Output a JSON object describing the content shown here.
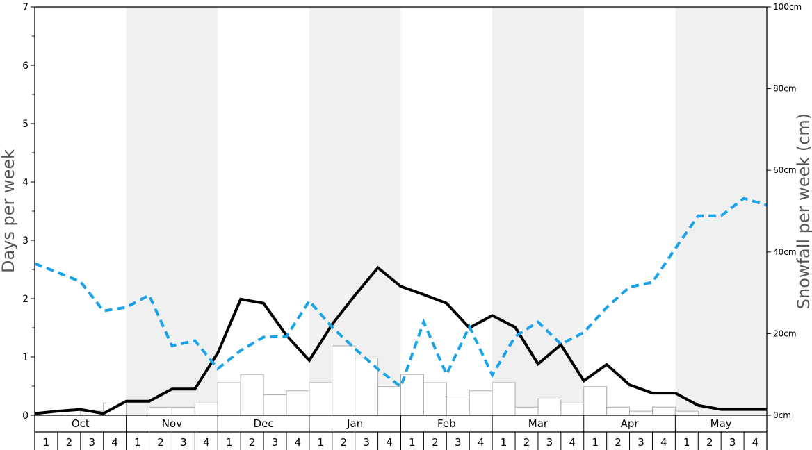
{
  "chart_data": {
    "type": "bar",
    "left_axis": {
      "label": "Days per week",
      "ylim": [
        0,
        7
      ],
      "tick_labels": [
        "0",
        "1",
        "2",
        "3",
        "4",
        "5",
        "6",
        "7"
      ]
    },
    "right_axis": {
      "label": "Snowfall per week (cm)",
      "ylim": [
        0,
        100
      ],
      "tick_labels": [
        "0cm",
        "20cm",
        "40cm",
        "60cm",
        "80cm",
        "100cm"
      ]
    },
    "months": [
      "Oct",
      "Nov",
      "Dec",
      "Jan",
      "Feb",
      "Mar",
      "Apr",
      "May"
    ],
    "weeks": [
      "1",
      "2",
      "3",
      "4"
    ],
    "shaded_months": [
      "Nov",
      "Jan",
      "Mar",
      "May"
    ],
    "grid": false,
    "legend": "none",
    "series": [
      {
        "type": "bar",
        "axis": "right",
        "color": "#ffffff",
        "stroke": "#aaaaaa",
        "values": [
          0,
          0,
          1,
          3,
          0,
          2,
          2,
          3,
          8,
          10,
          5,
          6,
          8,
          17,
          14,
          7,
          10,
          8,
          4,
          6,
          8,
          2,
          4,
          3,
          7,
          2,
          1,
          2,
          1,
          0,
          0,
          0
        ]
      },
      {
        "type": "line",
        "axis": "left",
        "color": "#000000",
        "style": "solid",
        "values": [
          0.03,
          0.07,
          0.1,
          0.03,
          0.24,
          0.24,
          0.45,
          0.45,
          1.07,
          1.99,
          1.92,
          1.37,
          0.94,
          1.56,
          2.06,
          2.53,
          2.21,
          2.07,
          1.92,
          1.5,
          1.71,
          1.51,
          0.88,
          1.21,
          0.59,
          0.87,
          0.52,
          0.38,
          0.38,
          0.17,
          0.1,
          0.1,
          0.1
        ]
      },
      {
        "type": "line",
        "axis": "left",
        "color": "#1aa3e8",
        "style": "dashed",
        "values": [
          2.6,
          2.45,
          2.29,
          1.79,
          1.85,
          2.06,
          1.19,
          1.28,
          0.8,
          1.11,
          1.34,
          1.35,
          1.96,
          1.51,
          1.14,
          0.79,
          0.49,
          1.6,
          0.7,
          1.52,
          0.69,
          1.35,
          1.6,
          1.22,
          1.42,
          1.85,
          2.2,
          2.28,
          2.86,
          3.42,
          3.42,
          3.72,
          3.6
        ]
      }
    ]
  }
}
